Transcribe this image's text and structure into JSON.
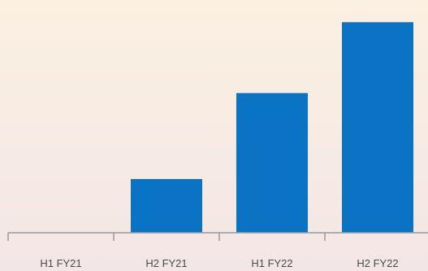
{
  "chart_data": {
    "type": "bar",
    "categories": [
      "H1 FY21",
      "H2 FY21",
      "H1 FY22",
      "H2 FY22"
    ],
    "values": [
      0,
      25,
      65,
      98
    ],
    "title": "",
    "xlabel": "",
    "ylabel": "",
    "ylim": [
      0,
      100
    ],
    "grid": false,
    "legend": "none",
    "colors": {
      "bar": "#0b73c3",
      "axis": "#9a9a9a",
      "tick_label": "#4a4a4a",
      "background_top": "#fbf0e1",
      "background_bottom": "#f3e6e6"
    }
  }
}
